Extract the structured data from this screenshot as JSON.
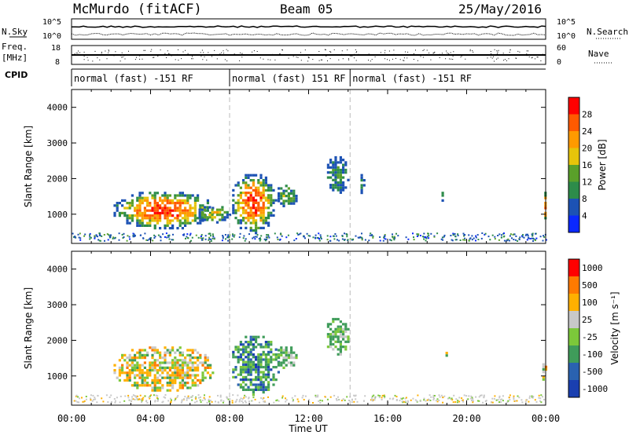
{
  "header": {
    "title": "McMurdo (fitACF)",
    "beam": "Beam 05",
    "date": "25/May/2016"
  },
  "strip_labels": {
    "nsky": "N.Sky",
    "nsearch": "N.Search",
    "freq_line1": "Freq.",
    "freq_line2": "[MHz]",
    "nave": "Nave",
    "cpid": "CPID",
    "ticks_noise_left": [
      "10^5",
      "10^0"
    ],
    "ticks_noise_right": [
      "10^5",
      "10^0"
    ],
    "ticks_freq_left": [
      "18",
      "8"
    ],
    "ticks_nave_right": [
      "60",
      "0"
    ]
  },
  "cpid_segments": [
    {
      "label": "normal (fast) -151 RF",
      "start_hour": 0
    },
    {
      "label": "normal (fast) 151 RF",
      "start_hour": 8
    },
    {
      "label": "normal (fast) -151 RF",
      "start_hour": 14.1
    }
  ],
  "chart_data": [
    {
      "type": "heatmap",
      "title": "",
      "xlabel": "Time UT",
      "ylabel": "Slant Range [km]",
      "x_ticks": [
        "00:00",
        "04:00",
        "08:00",
        "12:00",
        "16:00",
        "20:00",
        "00:00"
      ],
      "y_ticks": [
        "1000",
        "2000",
        "3000",
        "4000"
      ],
      "xlim_hours": [
        0,
        24
      ],
      "ylim_km": [
        180,
        4500
      ],
      "colorbar": {
        "label": "Power [dB]",
        "ticks": [
          "4",
          "8",
          "12",
          "16",
          "20",
          "24",
          "28"
        ],
        "range": [
          0,
          32
        ],
        "colors": [
          "#0a28ff",
          "#1c52b4",
          "#2d8c4a",
          "#5aa02a",
          "#e6c40a",
          "#ff9a00",
          "#ff5a00",
          "#ff0000"
        ]
      },
      "echo_regions": [
        {
          "t": [
            2.0,
            7.2
          ],
          "r": [
            600,
            1700
          ],
          "peak": 0.95
        },
        {
          "t": [
            8.0,
            10.3
          ],
          "r": [
            500,
            2200
          ],
          "peak": 0.95
        },
        {
          "t": [
            6.3,
            8.0
          ],
          "r": [
            800,
            1300
          ],
          "peak": 0.6
        },
        {
          "t": [
            10.3,
            11.4
          ],
          "r": [
            1200,
            1900
          ],
          "peak": 0.45
        },
        {
          "t": [
            12.8,
            14.0
          ],
          "r": [
            1600,
            2700
          ],
          "peak": 0.3
        },
        {
          "t": [
            14.5,
            14.8
          ],
          "r": [
            1600,
            2200
          ],
          "peak": 0.25
        },
        {
          "t": [
            18.6,
            18.8
          ],
          "r": [
            1400,
            1700
          ],
          "peak": 0.2
        },
        {
          "t": [
            23.8,
            24.0
          ],
          "r": [
            800,
            1700
          ],
          "peak": 0.9
        }
      ]
    },
    {
      "type": "heatmap",
      "title": "",
      "xlabel": "Time UT",
      "ylabel": "Slant Range [km]",
      "x_ticks": [
        "00:00",
        "04:00",
        "08:00",
        "12:00",
        "16:00",
        "20:00",
        "00:00"
      ],
      "y_ticks": [
        "1000",
        "2000",
        "3000",
        "4000"
      ],
      "xlim_hours": [
        0,
        24
      ],
      "ylim_km": [
        180,
        4500
      ],
      "colorbar": {
        "label": "Velocity [m s⁻¹]",
        "ticks": [
          "1000",
          "500",
          "100",
          "25",
          "-25",
          "-100",
          "-500",
          "-1000"
        ],
        "colors": [
          "#1a3fb0",
          "#2a62b0",
          "#3f9c5a",
          "#7cc83a",
          "#c8c8c8",
          "#ffb000",
          "#ff7a00",
          "#ff0000"
        ]
      },
      "echo_regions": [
        {
          "t": [
            2.0,
            7.2
          ],
          "r": [
            600,
            1900
          ],
          "mix": "warm"
        },
        {
          "t": [
            8.0,
            10.5
          ],
          "r": [
            500,
            2200
          ],
          "mix": "cool"
        },
        {
          "t": [
            10.3,
            11.4
          ],
          "r": [
            1200,
            1900
          ],
          "mix": "green"
        },
        {
          "t": [
            12.8,
            14.0
          ],
          "r": [
            1600,
            2700
          ],
          "mix": "green"
        },
        {
          "t": [
            18.8,
            19.0
          ],
          "r": [
            1500,
            1750
          ],
          "mix": "warm"
        },
        {
          "t": [
            23.7,
            24.0
          ],
          "r": [
            800,
            1500
          ],
          "mix": "warm"
        }
      ]
    }
  ]
}
